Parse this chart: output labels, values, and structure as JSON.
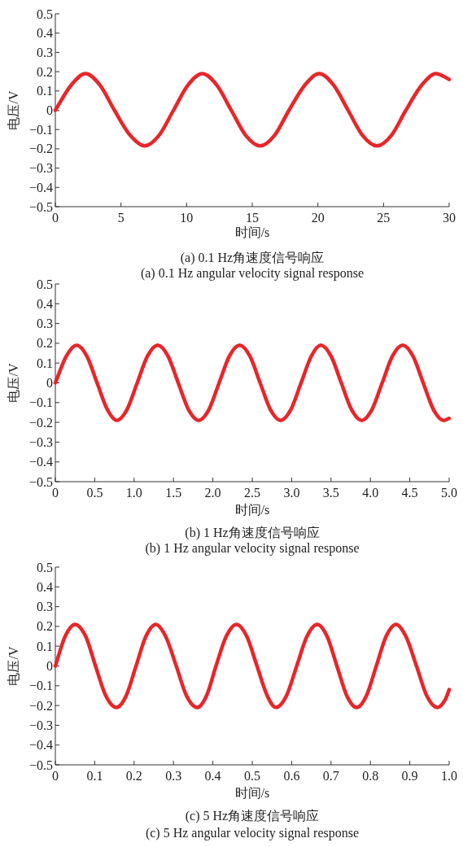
{
  "chart_data": [
    {
      "type": "line",
      "title": "(a) 0.1 Hz角速度信号响应",
      "subtitle": "(a) 0.1 Hz angular velocity signal response",
      "xlabel": "时间/s",
      "ylabel": "电压/V",
      "color": "#e8262a",
      "xlim": [
        0,
        30
      ],
      "ylim": [
        -0.5,
        0.5
      ],
      "xticks": [
        0,
        5,
        10,
        15,
        20,
        25,
        30
      ],
      "yticks": [
        -0.5,
        -0.4,
        -0.3,
        -0.2,
        -0.1,
        0,
        0.1,
        0.2,
        0.3,
        0.4,
        0.5
      ],
      "x": [
        0,
        1.2,
        2.3,
        3.4,
        4.5,
        5.7,
        6.8,
        7.9,
        9.0,
        10.1,
        11.2,
        12.3,
        13.4,
        14.5,
        15.6,
        16.7,
        17.8,
        19.0,
        20.1,
        21.2,
        22.3,
        23.4,
        24.5,
        25.6,
        26.7,
        27.9,
        29.0,
        30
      ],
      "values": [
        0,
        0.13,
        0.19,
        0.13,
        0,
        -0.13,
        -0.185,
        -0.13,
        0,
        0.13,
        0.19,
        0.13,
        0,
        -0.13,
        -0.185,
        -0.13,
        0,
        0.13,
        0.19,
        0.13,
        0,
        -0.13,
        -0.185,
        -0.13,
        0,
        0.13,
        0.19,
        0.16
      ]
    },
    {
      "type": "line",
      "title": "(b) 1 Hz角速度信号响应",
      "subtitle": "(b) 1 Hz angular velocity signal response",
      "xlabel": "时间/s",
      "ylabel": "电压/V",
      "color": "#e8262a",
      "xlim": [
        0,
        5
      ],
      "ylim": [
        -0.5,
        0.5
      ],
      "xticks": [
        0,
        0.5,
        {
          "value": 1,
          "label": "1.0"
        },
        1.5,
        {
          "value": 2,
          "label": "2.0"
        },
        2.5,
        {
          "value": 3,
          "label": "3.0"
        },
        3.5,
        {
          "value": 4,
          "label": "4.0"
        },
        4.5,
        {
          "value": 5,
          "label": "5.0"
        }
      ],
      "yticks": [
        -0.5,
        -0.4,
        -0.3,
        -0.2,
        -0.1,
        0,
        0.1,
        0.2,
        0.3,
        0.4,
        0.5
      ],
      "x": [
        0,
        0.14,
        0.27,
        0.4,
        0.53,
        0.66,
        0.78,
        0.91,
        1.04,
        1.17,
        1.3,
        1.43,
        1.56,
        1.69,
        1.82,
        1.95,
        2.08,
        2.21,
        2.34,
        2.47,
        2.6,
        2.73,
        2.86,
        2.99,
        3.12,
        3.25,
        3.37,
        3.5,
        3.63,
        3.76,
        3.89,
        4.02,
        4.15,
        4.28,
        4.41,
        4.54,
        4.67,
        4.8,
        4.93,
        5.0
      ],
      "values": [
        0,
        0.135,
        0.19,
        0.135,
        0,
        -0.135,
        -0.19,
        -0.135,
        0,
        0.135,
        0.19,
        0.135,
        0,
        -0.135,
        -0.19,
        -0.135,
        0,
        0.135,
        0.19,
        0.135,
        0,
        -0.135,
        -0.19,
        -0.135,
        0,
        0.135,
        0.19,
        0.135,
        0,
        -0.135,
        -0.19,
        -0.135,
        0,
        0.135,
        0.19,
        0.135,
        0,
        -0.135,
        -0.19,
        -0.18
      ]
    },
    {
      "type": "line",
      "title": "(c) 5 Hz角速度信号响应",
      "subtitle": "(c) 5 Hz angular velocity signal response",
      "xlabel": "时间/s",
      "ylabel": "电压/V",
      "color": "#e8262a",
      "xlim": [
        0,
        1
      ],
      "ylim": [
        -0.5,
        0.5
      ],
      "xticks": [
        0,
        0.1,
        0.2,
        0.3,
        0.4,
        0.5,
        0.6,
        0.7,
        0.8,
        0.9,
        {
          "value": 1,
          "label": "1.0"
        }
      ],
      "yticks": [
        -0.5,
        -0.4,
        -0.3,
        -0.2,
        -0.1,
        0,
        0.1,
        0.2,
        0.3,
        0.4,
        0.5
      ],
      "x": [
        0,
        0.025,
        0.05,
        0.077,
        0.102,
        0.128,
        0.155,
        0.18,
        0.205,
        0.23,
        0.255,
        0.28,
        0.307,
        0.333,
        0.36,
        0.384,
        0.408,
        0.434,
        0.46,
        0.486,
        0.512,
        0.538,
        0.56,
        0.587,
        0.613,
        0.639,
        0.665,
        0.69,
        0.715,
        0.74,
        0.765,
        0.79,
        0.815,
        0.84,
        0.865,
        0.89,
        0.917,
        0.943,
        0.97,
        0.99,
        1.0
      ],
      "values": [
        0,
        0.15,
        0.21,
        0.15,
        0,
        -0.15,
        -0.21,
        -0.15,
        0,
        0.15,
        0.21,
        0.15,
        0,
        -0.15,
        -0.21,
        -0.15,
        0,
        0.15,
        0.21,
        0.15,
        0,
        -0.15,
        -0.21,
        -0.15,
        0,
        0.15,
        0.21,
        0.15,
        0,
        -0.15,
        -0.21,
        -0.15,
        0,
        0.15,
        0.21,
        0.15,
        0,
        -0.15,
        -0.21,
        -0.17,
        -0.12
      ]
    }
  ]
}
